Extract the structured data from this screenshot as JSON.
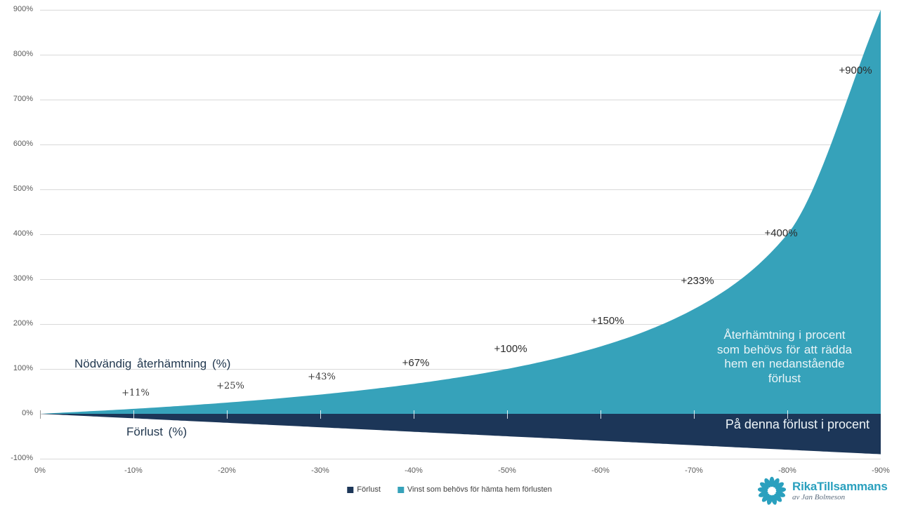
{
  "chart_data": {
    "type": "area",
    "title": "",
    "xlabel": "",
    "ylabel": "",
    "x": [
      0,
      -10,
      -20,
      -30,
      -40,
      -50,
      -60,
      -70,
      -80,
      -90
    ],
    "categories": [
      "0%",
      "-10%",
      "-20%",
      "-30%",
      "-40%",
      "-50%",
      "-60%",
      "-70%",
      "-80%",
      "-90%"
    ],
    "series": [
      {
        "name": "Förlust",
        "color": "#1c3658",
        "values": [
          0,
          -10,
          -20,
          -30,
          -40,
          -50,
          -60,
          -70,
          -80,
          -90
        ]
      },
      {
        "name": "Vinst som behövs för hämta hem förlusten",
        "color": "#36a2ba",
        "values": [
          0,
          11.1,
          25,
          42.9,
          66.7,
          100,
          150,
          233.3,
          400,
          900
        ]
      }
    ],
    "data_labels": [
      "+11%",
      "+25%",
      "+43%",
      "+67%",
      "+100%",
      "+150%",
      "+233%",
      "+400%",
      "+900%"
    ],
    "ytick_values": [
      900,
      800,
      700,
      600,
      500,
      400,
      300,
      200,
      100,
      0,
      -100
    ],
    "ytick_labels": [
      "900%",
      "800%",
      "700%",
      "600%",
      "500%",
      "400%",
      "300%",
      "200%",
      "100%",
      "0%",
      "-100%"
    ],
    "xlim": [
      0,
      -90
    ],
    "ylim": [
      -100,
      900
    ],
    "grid": true,
    "gridline_color": "#d9d9d9",
    "legend_position": "bottom"
  },
  "annotations": {
    "recovery_axis_note": "Nödvändig återhämtning (%)",
    "loss_axis_note": "Förlust (%)",
    "teal_note_lines": [
      "Återhämtning i procent",
      "som behövs för att rädda",
      "hem en nedanstående",
      "förlust"
    ],
    "navy_note": "På denna förlust i procent"
  },
  "legend": {
    "items": [
      {
        "label": "Förlust",
        "color": "#1c3658"
      },
      {
        "label": "Vinst som behövs för hämta hem förlusten",
        "color": "#36a2ba"
      }
    ]
  },
  "branding": {
    "name": "RikaTillsammans",
    "byline": "av Jan Bolmeson",
    "color": "#2aa0be"
  }
}
